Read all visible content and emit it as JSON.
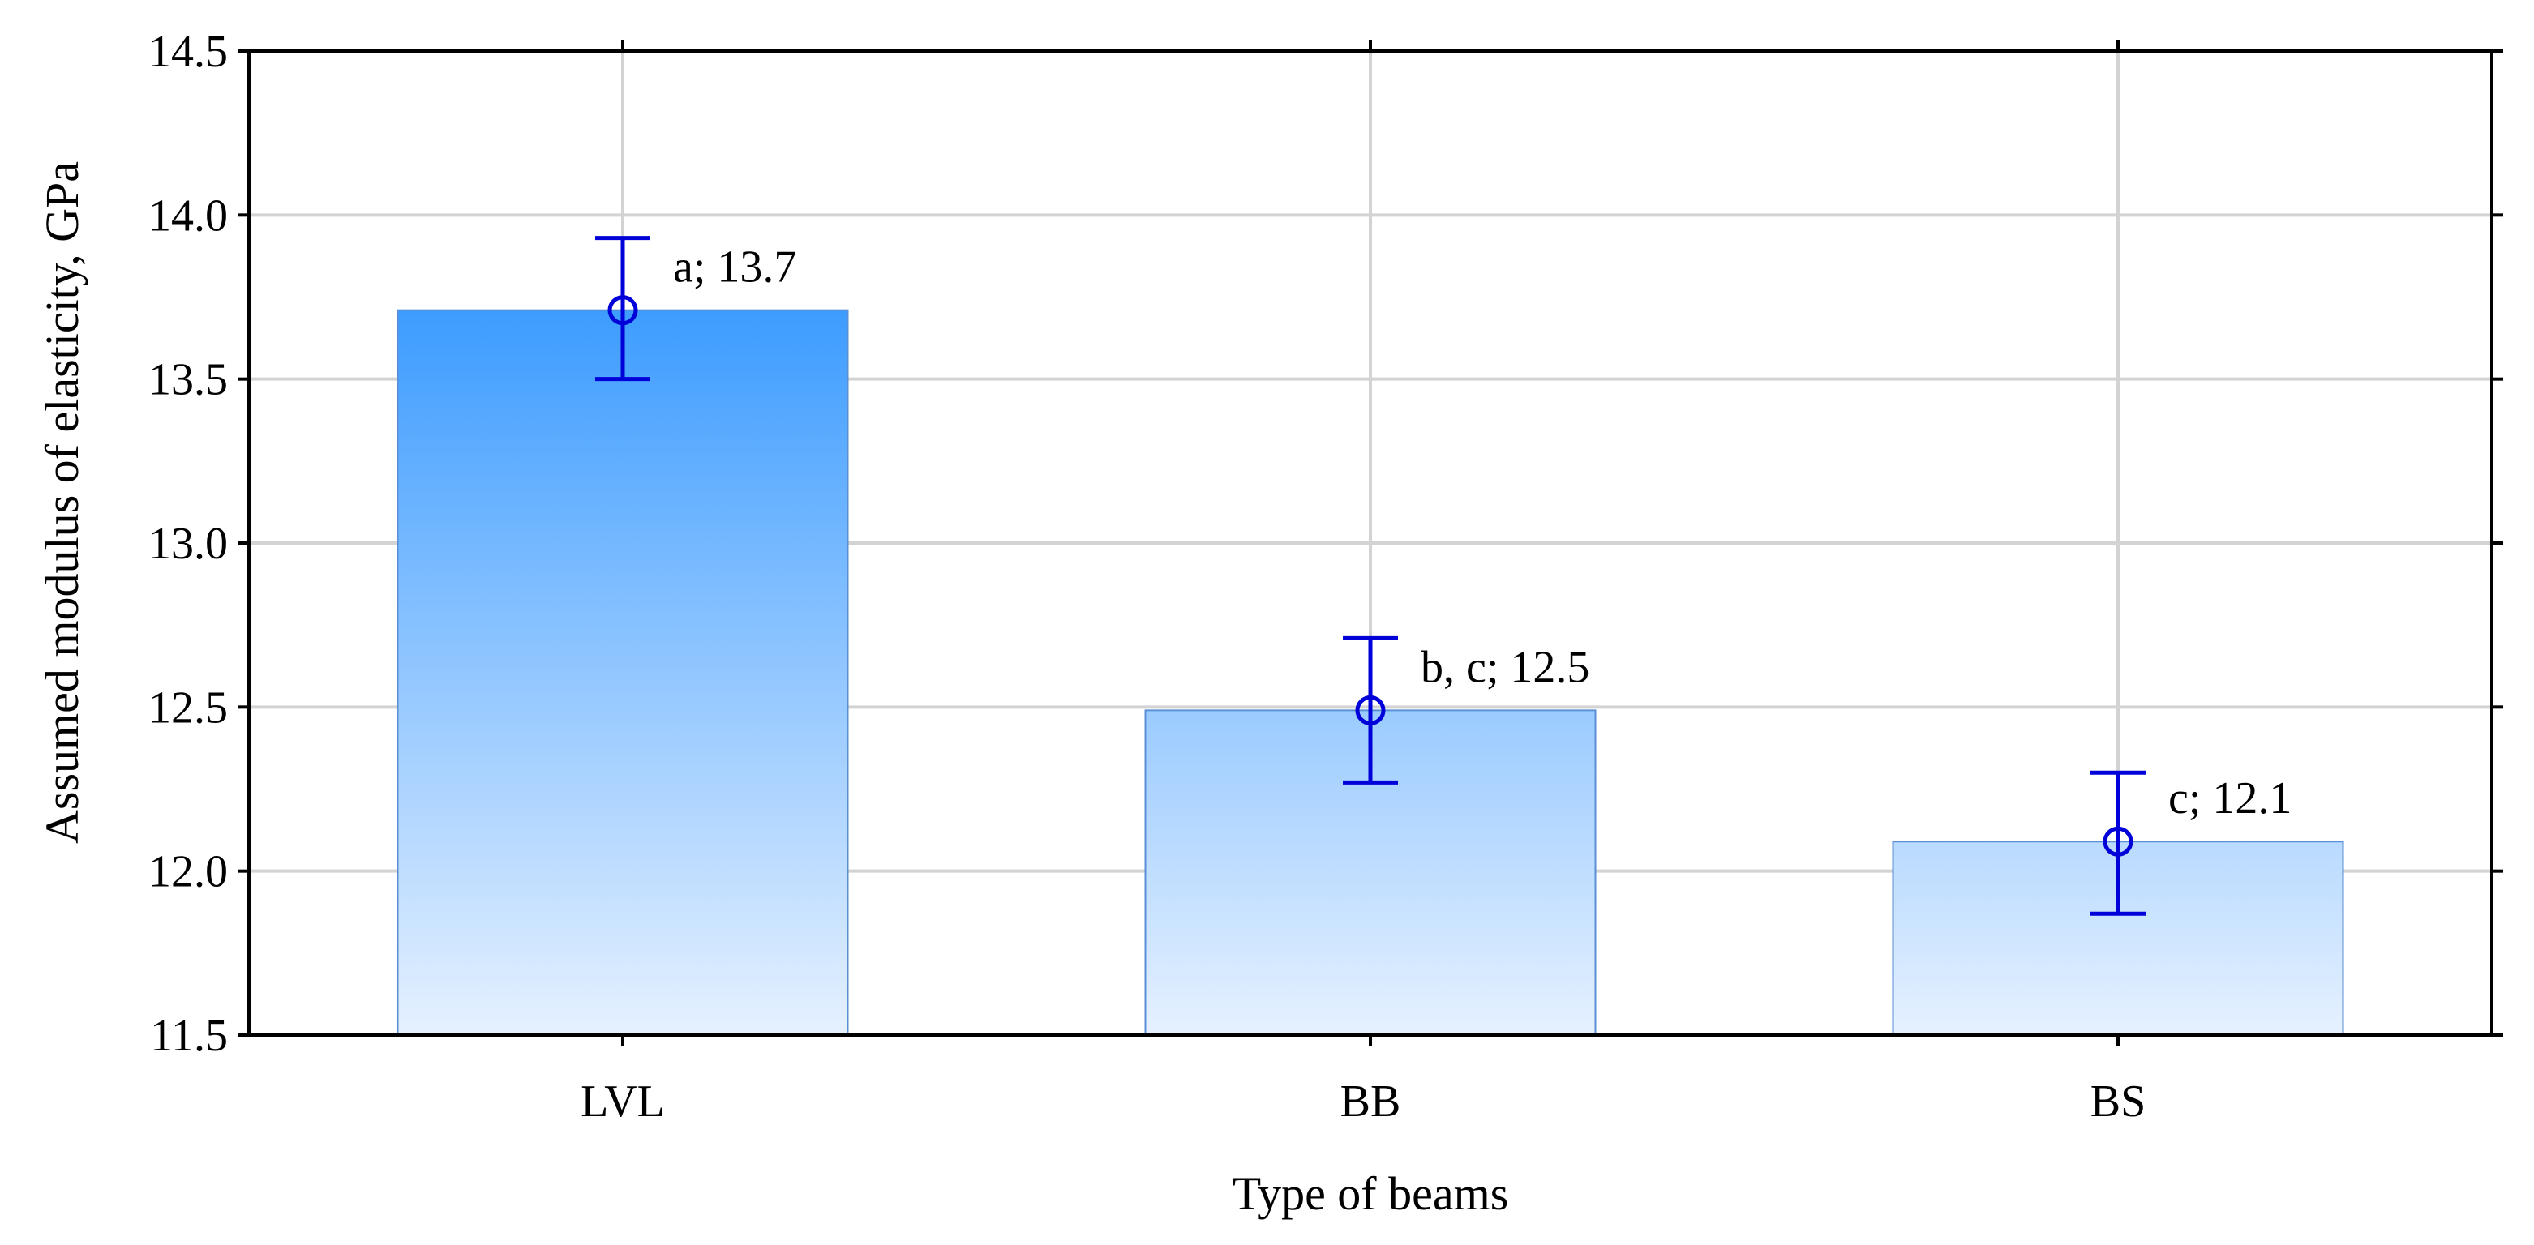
{
  "chart_data": {
    "type": "bar",
    "title": "",
    "xlabel": "Type of beams",
    "ylabel": "Assumed modulus of elasticity, GPa",
    "categories": [
      "LVL",
      "BB",
      "BS"
    ],
    "values": [
      13.71,
      12.49,
      12.09
    ],
    "error_low": [
      13.5,
      12.27,
      11.87
    ],
    "error_high": [
      13.93,
      12.71,
      12.3
    ],
    "labels": [
      "a; 13.7",
      "b, c; 12.5",
      "c; 12.1"
    ],
    "ylim": [
      11.5,
      14.5
    ],
    "yticks": [
      "11.5",
      "12.0",
      "12.5",
      "13.0",
      "13.5",
      "14.0",
      "14.5"
    ],
    "grid": true,
    "colors": {
      "bar_gradient_top": "#3d9cff",
      "bar_gradient_bottom": "#e6f1ff",
      "bar_border": "#5a8fd6",
      "error_bar": "#0000d8",
      "grid": "#d3d3d3",
      "axis": "#000000"
    }
  }
}
